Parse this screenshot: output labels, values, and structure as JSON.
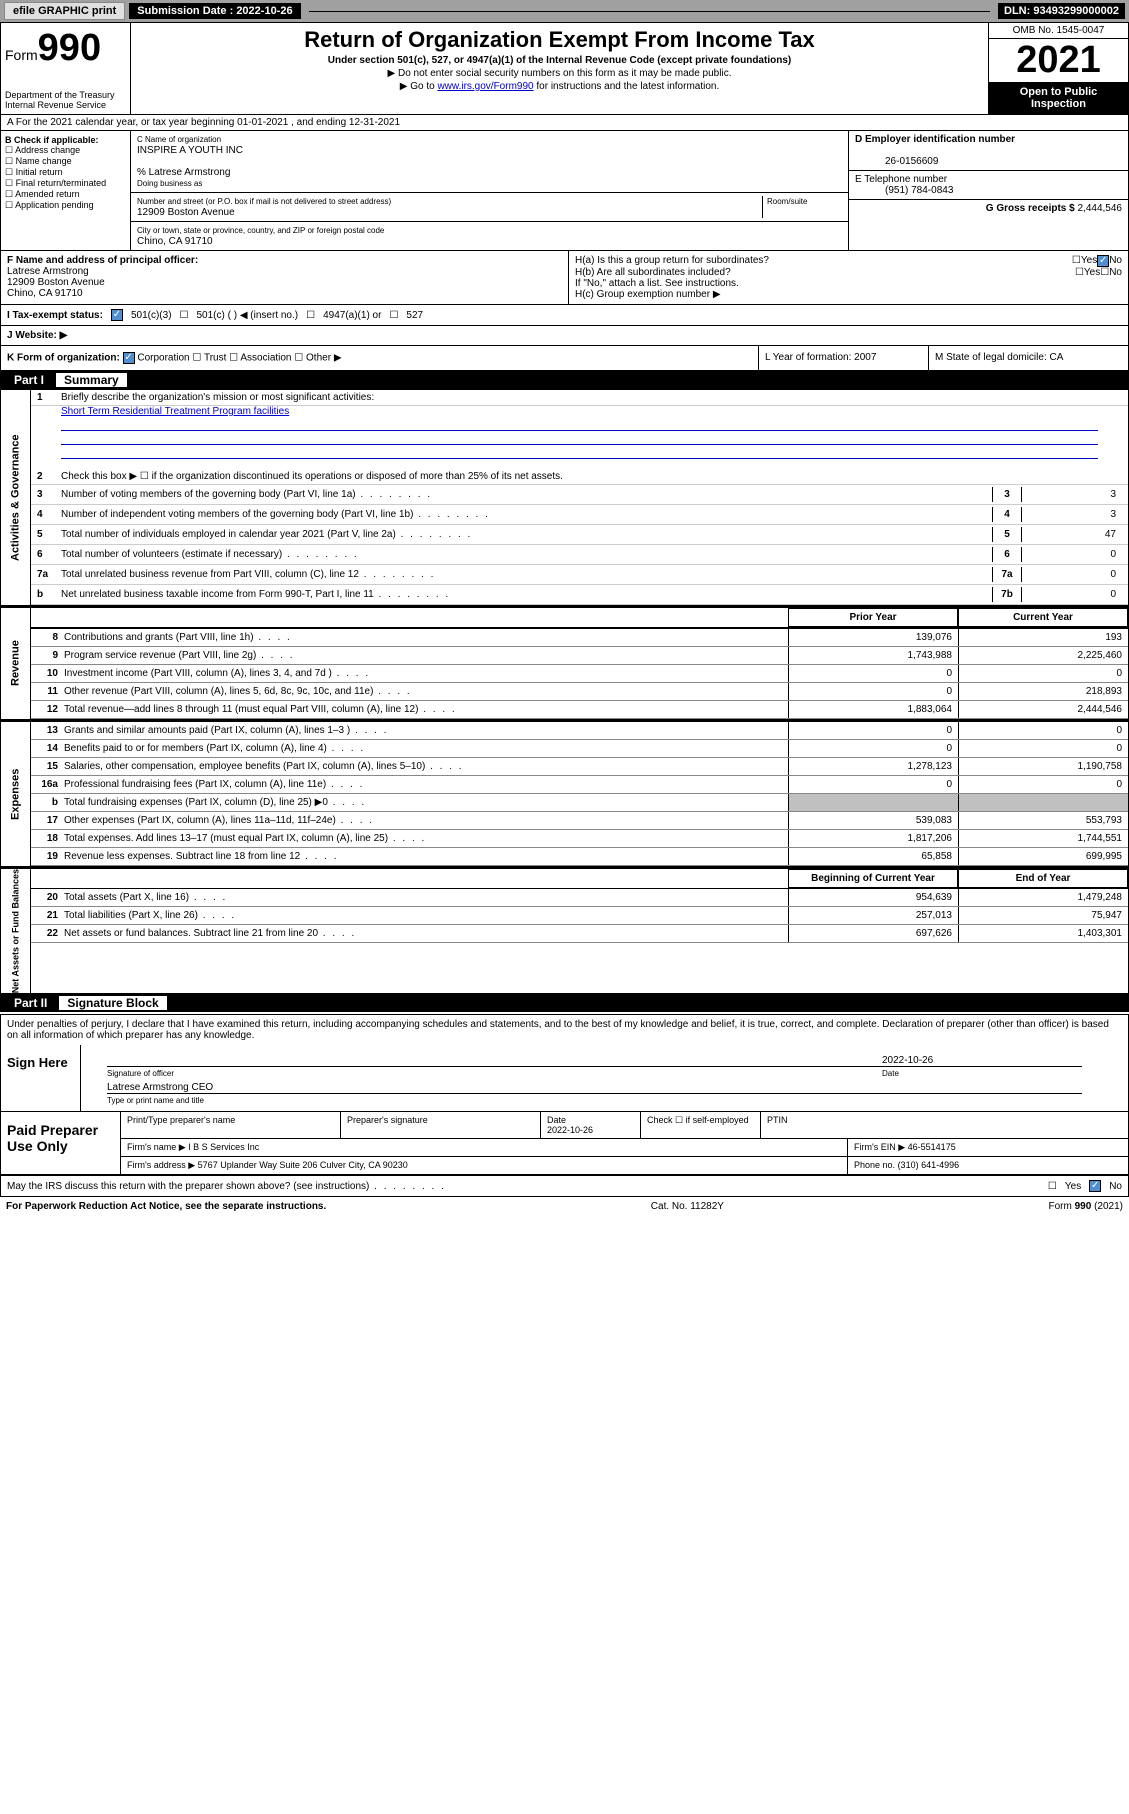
{
  "header_bar": {
    "efile": "efile GRAPHIC print",
    "submission_label": "Submission Date : 2022-10-26",
    "dln": "DLN: 93493299000002"
  },
  "form_header": {
    "form_word": "Form",
    "form_num": "990",
    "dept": "Department of the Treasury Internal Revenue Service",
    "title": "Return of Organization Exempt From Income Tax",
    "sub": "Under section 501(c), 527, or 4947(a)(1) of the Internal Revenue Code (except private foundations)",
    "note1": "▶ Do not enter social security numbers on this form as it may be made public.",
    "note2_pre": "▶ Go to ",
    "note2_link": "www.irs.gov/Form990",
    "note2_post": " for instructions and the latest information.",
    "omb": "OMB No. 1545-0047",
    "year": "2021",
    "open": "Open to Public Inspection"
  },
  "section_a": "A For the 2021 calendar year, or tax year beginning 01-01-2021   , and ending 12-31-2021",
  "col_b": {
    "header": "B Check if applicable:",
    "opts": [
      "Address change",
      "Name change",
      "Initial return",
      "Final return/terminated",
      "Amended return",
      "Application pending"
    ]
  },
  "col_c": {
    "c_label": "C Name of organization",
    "c_name": "INSPIRE A YOUTH INC",
    "care_of": "% Latrese Armstrong",
    "dba_label": "Doing business as",
    "addr_label": "Number and street (or P.O. box if mail is not delivered to street address)",
    "room_label": "Room/suite",
    "addr": "12909 Boston Avenue",
    "city_label": "City or town, state or province, country, and ZIP or foreign postal code",
    "city": "Chino, CA  91710"
  },
  "col_d": {
    "d_label": "D Employer identification number",
    "ein": "26-0156609",
    "e_label": "E Telephone number",
    "phone": "(951) 784-0843",
    "g_label": "G Gross receipts $",
    "gross": "2,444,546"
  },
  "row_f": {
    "f_label": "F Name and address of principal officer:",
    "name": "Latrese Armstrong",
    "addr1": "12909 Boston Avenue",
    "addr2": "Chino, CA  91710"
  },
  "row_h": {
    "ha": "H(a)  Is this a group return for subordinates?",
    "hb": "H(b)  Are all subordinates included?",
    "hb_note": "If \"No,\" attach a list. See instructions.",
    "hc": "H(c)  Group exemption number ▶",
    "yes": "Yes",
    "no": "No"
  },
  "tax_status": {
    "i_label": "I   Tax-exempt status:",
    "opt1": "501(c)(3)",
    "opt2": "501(c) (  ) ◀ (insert no.)",
    "opt3": "4947(a)(1) or",
    "opt4": "527",
    "j_label": "J   Website: ▶"
  },
  "k_row": {
    "k": "K Form of organization:",
    "opts": [
      "Corporation",
      "Trust",
      "Association",
      "Other ▶"
    ],
    "l": "L Year of formation: 2007",
    "m": "M State of legal domicile: CA"
  },
  "part1": {
    "label": "Part I",
    "title": "Summary"
  },
  "gov": {
    "tab": "Activities & Governance",
    "line1": "Briefly describe the organization's mission or most significant activities:",
    "line1_val": "Short Term Residential Treatment Program facilities",
    "line2": "Check this box ▶ ☐  if the organization discontinued its operations or disposed of more than 25% of its net assets.",
    "rows": [
      {
        "n": "3",
        "t": "Number of voting members of the governing body (Part VI, line 1a)",
        "a": "3",
        "v": "3"
      },
      {
        "n": "4",
        "t": "Number of independent voting members of the governing body (Part VI, line 1b)",
        "a": "4",
        "v": "3"
      },
      {
        "n": "5",
        "t": "Total number of individuals employed in calendar year 2021 (Part V, line 2a)",
        "a": "5",
        "v": "47"
      },
      {
        "n": "6",
        "t": "Total number of volunteers (estimate if necessary)",
        "a": "6",
        "v": "0"
      },
      {
        "n": "7a",
        "t": "Total unrelated business revenue from Part VIII, column (C), line 12",
        "a": "7a",
        "v": "0"
      },
      {
        "n": "b",
        "t": "Net unrelated business taxable income from Form 990-T, Part I, line 11",
        "a": "7b",
        "v": "0"
      }
    ]
  },
  "table_headers": {
    "prior": "Prior Year",
    "curr": "Current Year",
    "boy": "Beginning of Current Year",
    "eoy": "End of Year"
  },
  "revenue": {
    "tab": "Revenue",
    "rows": [
      {
        "n": "8",
        "t": "Contributions and grants (Part VIII, line 1h)",
        "p": "139,076",
        "c": "193"
      },
      {
        "n": "9",
        "t": "Program service revenue (Part VIII, line 2g)",
        "p": "1,743,988",
        "c": "2,225,460"
      },
      {
        "n": "10",
        "t": "Investment income (Part VIII, column (A), lines 3, 4, and 7d )",
        "p": "0",
        "c": "0"
      },
      {
        "n": "11",
        "t": "Other revenue (Part VIII, column (A), lines 5, 6d, 8c, 9c, 10c, and 11e)",
        "p": "0",
        "c": "218,893"
      },
      {
        "n": "12",
        "t": "Total revenue—add lines 8 through 11 (must equal Part VIII, column (A), line 12)",
        "p": "1,883,064",
        "c": "2,444,546"
      }
    ]
  },
  "expenses": {
    "tab": "Expenses",
    "rows": [
      {
        "n": "13",
        "t": "Grants and similar amounts paid (Part IX, column (A), lines 1–3 )",
        "p": "0",
        "c": "0"
      },
      {
        "n": "14",
        "t": "Benefits paid to or for members (Part IX, column (A), line 4)",
        "p": "0",
        "c": "0"
      },
      {
        "n": "15",
        "t": "Salaries, other compensation, employee benefits (Part IX, column (A), lines 5–10)",
        "p": "1,278,123",
        "c": "1,190,758"
      },
      {
        "n": "16a",
        "t": "Professional fundraising fees (Part IX, column (A), line 11e)",
        "p": "0",
        "c": "0"
      },
      {
        "n": "b",
        "t": "Total fundraising expenses (Part IX, column (D), line 25) ▶0",
        "p": "",
        "c": "",
        "gray": true
      },
      {
        "n": "17",
        "t": "Other expenses (Part IX, column (A), lines 11a–11d, 11f–24e)",
        "p": "539,083",
        "c": "553,793"
      },
      {
        "n": "18",
        "t": "Total expenses. Add lines 13–17 (must equal Part IX, column (A), line 25)",
        "p": "1,817,206",
        "c": "1,744,551"
      },
      {
        "n": "19",
        "t": "Revenue less expenses. Subtract line 18 from line 12",
        "p": "65,858",
        "c": "699,995"
      }
    ]
  },
  "netassets": {
    "tab": "Net Assets or Fund Balances",
    "rows": [
      {
        "n": "20",
        "t": "Total assets (Part X, line 16)",
        "p": "954,639",
        "c": "1,479,248"
      },
      {
        "n": "21",
        "t": "Total liabilities (Part X, line 26)",
        "p": "257,013",
        "c": "75,947"
      },
      {
        "n": "22",
        "t": "Net assets or fund balances. Subtract line 21 from line 20",
        "p": "697,626",
        "c": "1,403,301"
      }
    ]
  },
  "part2": {
    "label": "Part II",
    "title": "Signature Block"
  },
  "sig": {
    "intro": "Under penalties of perjury, I declare that I have examined this return, including accompanying schedules and statements, and to the best of my knowledge and belief, it is true, correct, and complete. Declaration of preparer (other than officer) is based on all information of which preparer has any knowledge.",
    "sign_here": "Sign Here",
    "sig_officer": "Signature of officer",
    "date": "Date",
    "sig_date": "2022-10-26",
    "name_title": "Latrese Armstrong CEO",
    "name_sub": "Type or print name and title"
  },
  "paid": {
    "label": "Paid Preparer Use Only",
    "h1": "Print/Type preparer's name",
    "h2": "Preparer's signature",
    "h3": "Date",
    "h3v": "2022-10-26",
    "h4": "Check ☐ if self-employed",
    "h5": "PTIN",
    "firm_name_l": "Firm's name    ▶",
    "firm_name": "I B S Services Inc",
    "firm_ein_l": "Firm's EIN ▶",
    "firm_ein": "46-5514175",
    "firm_addr_l": "Firm's address ▶",
    "firm_addr": "5767 Uplander Way Suite 206 Culver City, CA  90230",
    "phone_l": "Phone no.",
    "phone": "(310) 641-4996"
  },
  "discuss": {
    "text": "May the IRS discuss this return with the preparer shown above? (see instructions)",
    "yes": "Yes",
    "no": "No"
  },
  "footer": {
    "left": "For Paperwork Reduction Act Notice, see the separate instructions.",
    "mid": "Cat. No. 11282Y",
    "right": "Form 990 (2021)"
  }
}
